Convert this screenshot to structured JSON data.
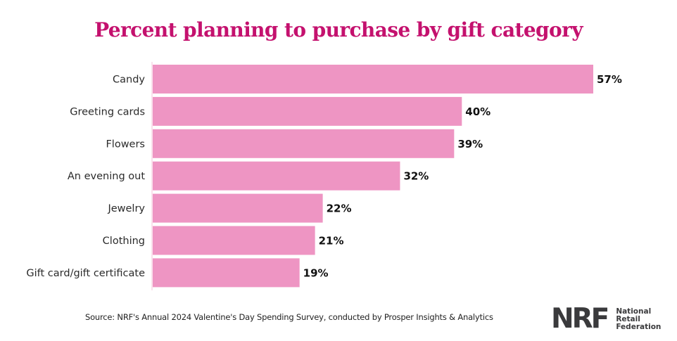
{
  "chart_data": {
    "type": "bar",
    "orientation": "horizontal",
    "title": "Percent planning to purchase by gift category",
    "categories": [
      "Candy",
      "Greeting cards",
      "Flowers",
      "An evening out",
      "Jewelry",
      "Clothing",
      "Gift card/gift certificate"
    ],
    "values": [
      57,
      40,
      39,
      32,
      22,
      21,
      19
    ],
    "value_labels": [
      "57%",
      "40%",
      "39%",
      "32%",
      "22%",
      "21%",
      "19%"
    ],
    "unit": "%",
    "xlabel": "",
    "ylabel": "",
    "xlim": [
      0,
      60
    ],
    "grid": false,
    "legend": "none",
    "bar_color": "#ee95c3",
    "axis_color": "#f6cde0"
  },
  "title_color": "#c4116e",
  "source": "Source: NRF's Annual 2024 Valentine's Day Spending Survey, conducted by Prosper Insights & Analytics",
  "logo": {
    "mark": "NRF",
    "lines": [
      "National",
      "Retail",
      "Federation"
    ]
  }
}
